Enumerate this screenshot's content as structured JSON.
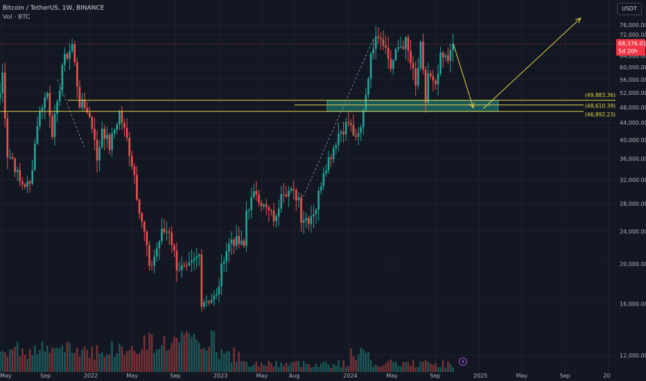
{
  "header": {
    "symbol_line": "Bitcoin / TetherUS, 1W, BINANCE",
    "volume_line": "Vol · BTC"
  },
  "axis": {
    "currency_button": "USDT"
  },
  "chart_data": {
    "type": "candlestick",
    "y_scale": "log",
    "ylim": [
      11000,
      80000
    ],
    "xlim": [
      "2021-04-25",
      "2026-01-20"
    ],
    "price_ticks": [
      "76,000.00",
      "72,000.00",
      "68,000.00",
      "64,000.00",
      "60,000.00",
      "56,000.00",
      "52,000.00",
      "48,000.00",
      "44,000.00",
      "40,000.00",
      "36,000.00",
      "32,000.00",
      "28,000.00",
      "24,000.00",
      "20,000.00",
      "16,000.00",
      "12,000.00"
    ],
    "price_tick_values": [
      76000,
      72000,
      68000,
      64000,
      60000,
      56000,
      52000,
      48000,
      44000,
      40000,
      36000,
      32000,
      28000,
      24000,
      20000,
      16000,
      12000
    ],
    "time_ticks": [
      {
        "label": "May",
        "date": "2021-05-01"
      },
      {
        "label": "Sep",
        "date": "2021-09-01"
      },
      {
        "label": "2022",
        "date": "2022-01-01"
      },
      {
        "label": "May",
        "date": "2022-05-01"
      },
      {
        "label": "Sep",
        "date": "2022-09-01"
      },
      {
        "label": "2023",
        "date": "2023-01-01"
      },
      {
        "label": "May",
        "date": "2023-05-01"
      },
      {
        "label": "Aug",
        "date": "2023-08-01"
      },
      {
        "label": "2024",
        "date": "2024-01-01"
      },
      {
        "label": "May",
        "date": "2024-05-01"
      },
      {
        "label": "Sep",
        "date": "2024-09-01"
      },
      {
        "label": "2025",
        "date": "2025-01-01"
      },
      {
        "label": "May",
        "date": "2025-05-01"
      },
      {
        "label": "Sep",
        "date": "2025-09-01"
      },
      {
        "label": "20",
        "date": "2026-01-01"
      }
    ],
    "last_price": {
      "label": "68,376.01",
      "value": 68376.01,
      "countdown": "5d 20h",
      "color": "#f23645"
    },
    "horizontal_levels": [
      {
        "label": "(49,883.36)",
        "value": 49883.36,
        "from": "2021-11-01",
        "color": "#e8d44d"
      },
      {
        "label": "(48,610.39)",
        "value": 48610.39,
        "from": "2023-08-01",
        "color": "#e8d44d"
      },
      {
        "label": "(46,892.23)",
        "value": 46892.23,
        "from": "2021-04-25",
        "color": "#e8d44d"
      }
    ],
    "zone": {
      "from": "2023-11-01",
      "to": "2025-02-24",
      "low": 46892.23,
      "high": 49883.36,
      "color": "#26a69a"
    },
    "projection_path": [
      {
        "date": "2024-10-21",
        "value": 68376
      },
      {
        "date": "2024-12-16",
        "value": 47800
      },
      {
        "date": "2025-01-13",
        "value": 47600
      },
      {
        "date": "2025-10-14",
        "value": 79000
      }
    ],
    "dashed_guides": [
      [
        {
          "date": "2021-10-04",
          "value": 56000
        },
        {
          "date": "2021-12-20",
          "value": 38000
        }
      ],
      [
        {
          "date": "2023-08-21",
          "value": 28500
        },
        {
          "date": "2024-03-11",
          "value": 70500
        }
      ]
    ],
    "candle_color_up": "#26a69a",
    "candle_color_down": "#ef5350",
    "anchors": [
      [
        "2021-04-25",
        52000,
        "o"
      ],
      [
        "2021-05-02",
        58000,
        "h"
      ],
      [
        "2021-05-16",
        37000,
        "l"
      ],
      [
        "2021-05-30",
        36000,
        "c"
      ],
      [
        "2021-06-20",
        31500,
        "l"
      ],
      [
        "2021-07-18",
        31000,
        "l"
      ],
      [
        "2021-08-08",
        44000,
        "c"
      ],
      [
        "2021-08-22",
        49000,
        "h"
      ],
      [
        "2021-09-05",
        52000,
        "h"
      ],
      [
        "2021-09-19",
        42000,
        "l"
      ],
      [
        "2021-10-03",
        48000,
        "c"
      ],
      [
        "2021-10-17",
        61000,
        "c"
      ],
      [
        "2021-11-07",
        66000,
        "c"
      ],
      [
        "2021-11-14",
        68000,
        "h"
      ],
      [
        "2021-12-05",
        49000,
        "c"
      ],
      [
        "2021-12-26",
        47500,
        "c"
      ],
      [
        "2022-01-16",
        41000,
        "c"
      ],
      [
        "2022-01-23",
        35000,
        "l"
      ],
      [
        "2022-02-06",
        43000,
        "c"
      ],
      [
        "2022-02-27",
        38500,
        "c"
      ],
      [
        "2022-03-27",
        46500,
        "h"
      ],
      [
        "2022-04-17",
        40000,
        "c"
      ],
      [
        "2022-05-08",
        33000,
        "c"
      ],
      [
        "2022-05-15",
        29500,
        "c"
      ],
      [
        "2022-06-12",
        22000,
        "c"
      ],
      [
        "2022-06-19",
        19200,
        "l"
      ],
      [
        "2022-07-24",
        23800,
        "h"
      ],
      [
        "2022-08-14",
        24200,
        "c"
      ],
      [
        "2022-09-04",
        19800,
        "c"
      ],
      [
        "2022-10-02",
        19200,
        "c"
      ],
      [
        "2022-11-06",
        21000,
        "c"
      ],
      [
        "2022-11-13",
        16300,
        "l"
      ],
      [
        "2022-12-25",
        16600,
        "c"
      ],
      [
        "2023-01-15",
        21000,
        "c"
      ],
      [
        "2023-02-05",
        23000,
        "c"
      ],
      [
        "2023-03-12",
        22000,
        "l"
      ],
      [
        "2023-03-19",
        27000,
        "c"
      ],
      [
        "2023-04-16",
        30000,
        "h"
      ],
      [
        "2023-05-07",
        27500,
        "c"
      ],
      [
        "2023-06-11",
        25500,
        "c"
      ],
      [
        "2023-06-25",
        30500,
        "c"
      ],
      [
        "2023-07-16",
        30000,
        "c"
      ],
      [
        "2023-08-13",
        29000,
        "c"
      ],
      [
        "2023-08-20",
        26000,
        "c"
      ],
      [
        "2023-09-10",
        25800,
        "c"
      ],
      [
        "2023-10-01",
        27500,
        "c"
      ],
      [
        "2023-10-22",
        34000,
        "c"
      ],
      [
        "2023-11-12",
        37000,
        "c"
      ],
      [
        "2023-12-03",
        41500,
        "c"
      ],
      [
        "2023-12-31",
        44000,
        "c"
      ],
      [
        "2024-01-14",
        41500,
        "c"
      ],
      [
        "2024-01-21",
        39500,
        "l"
      ],
      [
        "2024-02-04",
        42500,
        "c"
      ],
      [
        "2024-02-11",
        48000,
        "c"
      ],
      [
        "2024-02-18",
        52000,
        "c"
      ],
      [
        "2024-02-25",
        58000,
        "c"
      ],
      [
        "2024-03-10",
        68500,
        "c"
      ],
      [
        "2024-03-17",
        73500,
        "h"
      ],
      [
        "2024-04-07",
        70000,
        "c"
      ],
      [
        "2024-04-28",
        60000,
        "c"
      ],
      [
        "2024-05-19",
        67000,
        "c"
      ],
      [
        "2024-06-09",
        69000,
        "h"
      ],
      [
        "2024-06-30",
        58000,
        "c"
      ],
      [
        "2024-07-07",
        53500,
        "l"
      ],
      [
        "2024-07-21",
        67000,
        "c"
      ],
      [
        "2024-08-04",
        49500,
        "l"
      ],
      [
        "2024-08-11",
        58000,
        "c"
      ],
      [
        "2024-09-01",
        53000,
        "c"
      ],
      [
        "2024-09-15",
        63000,
        "c"
      ],
      [
        "2024-10-06",
        62500,
        "c"
      ],
      [
        "2024-10-13",
        68000,
        "c"
      ],
      [
        "2024-10-20",
        68376.01,
        "c"
      ]
    ]
  }
}
